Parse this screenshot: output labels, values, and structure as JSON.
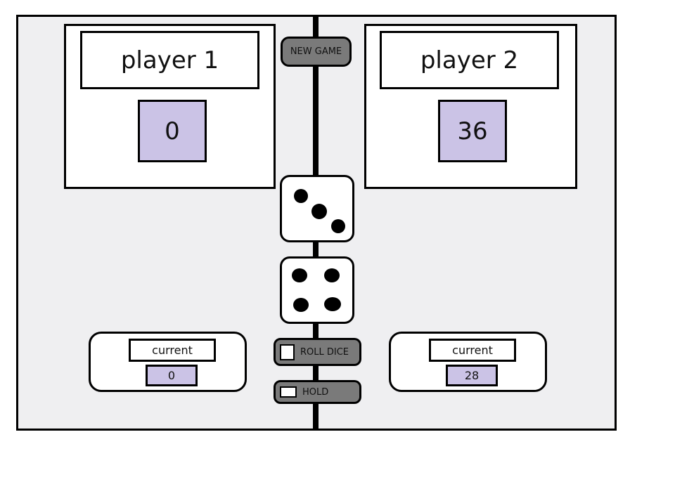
{
  "players": [
    {
      "name": "player 1",
      "score": "0",
      "current_label": "current",
      "current_value": "0"
    },
    {
      "name": "player 2",
      "score": "36",
      "current_label": "current",
      "current_value": "28"
    }
  ],
  "controls": {
    "new_game": "NEW GAME",
    "roll_dice": "ROLL DICE",
    "hold": "HOLD"
  },
  "dice": [
    3,
    4
  ],
  "colors": {
    "board": "#efeff1",
    "score_fill": "#cbc3e6",
    "button": "#7a7a7a"
  }
}
